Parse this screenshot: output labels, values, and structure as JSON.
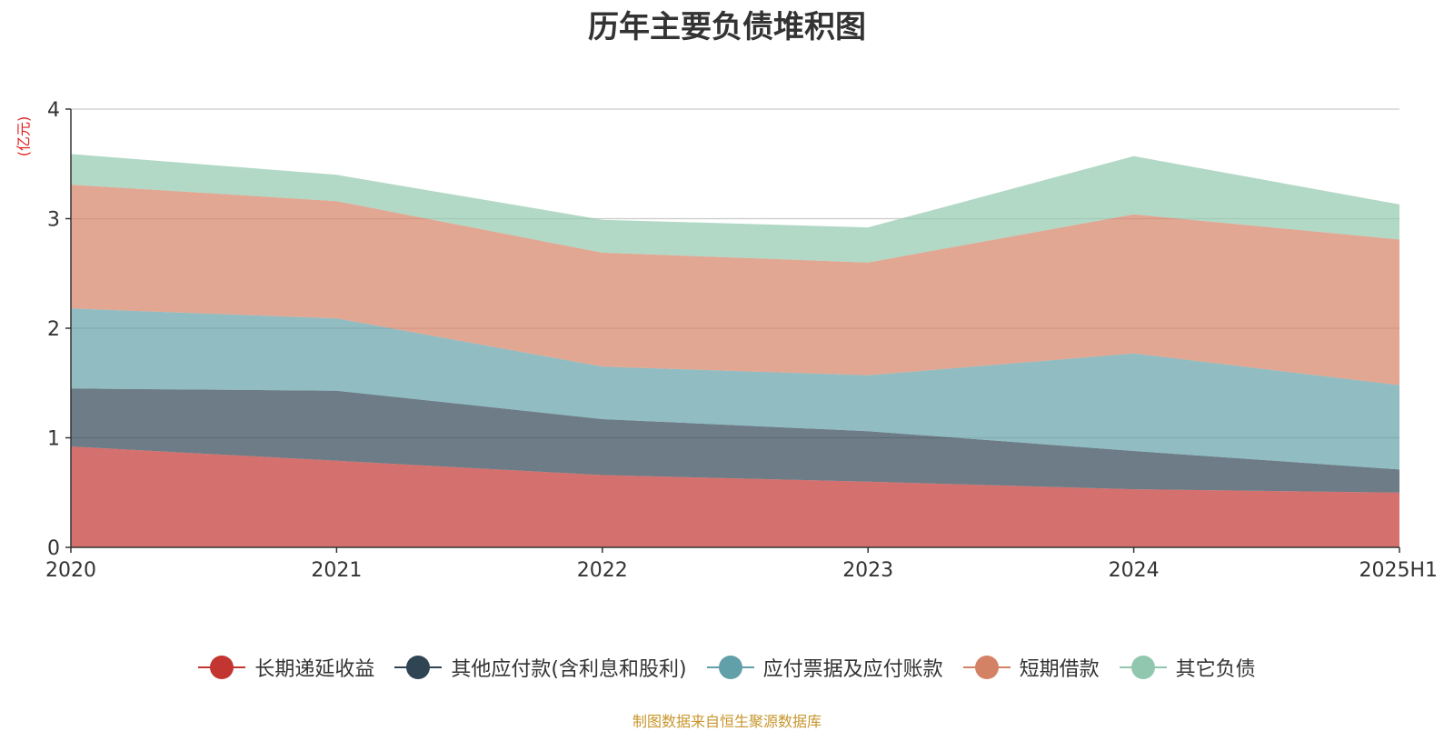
{
  "title": "历年主要负债堆积图",
  "unit_label": "(亿元)",
  "source": "制图数据来自恒生聚源数据库",
  "chart_data": {
    "type": "area",
    "stacked": true,
    "title": "历年主要负债堆积图",
    "ylabel": "(亿元)",
    "x": [
      "2020",
      "2021",
      "2022",
      "2023",
      "2024",
      "2025H1"
    ],
    "ylim": [
      0,
      4
    ],
    "yticks": [
      "0",
      "1",
      "2",
      "3",
      "4"
    ],
    "grid": true,
    "legend_position": "bottom",
    "series": [
      {
        "name": "长期递延收益",
        "color": "#c23531",
        "values": [
          0.92,
          0.79,
          0.66,
          0.6,
          0.53,
          0.5
        ]
      },
      {
        "name": "其他应付款(含利息和股利)",
        "color": "#2f4554",
        "values": [
          0.53,
          0.64,
          0.51,
          0.46,
          0.35,
          0.21
        ]
      },
      {
        "name": "应付票据及应付账款",
        "color": "#61a0a8",
        "values": [
          0.73,
          0.66,
          0.48,
          0.51,
          0.89,
          0.77
        ]
      },
      {
        "name": "短期借款",
        "color": "#d48265",
        "values": [
          1.13,
          1.07,
          1.04,
          1.03,
          1.27,
          1.33
        ]
      },
      {
        "name": "其它负债",
        "color": "#91c7ae",
        "values": [
          0.28,
          0.24,
          0.3,
          0.32,
          0.53,
          0.32
        ]
      }
    ]
  }
}
